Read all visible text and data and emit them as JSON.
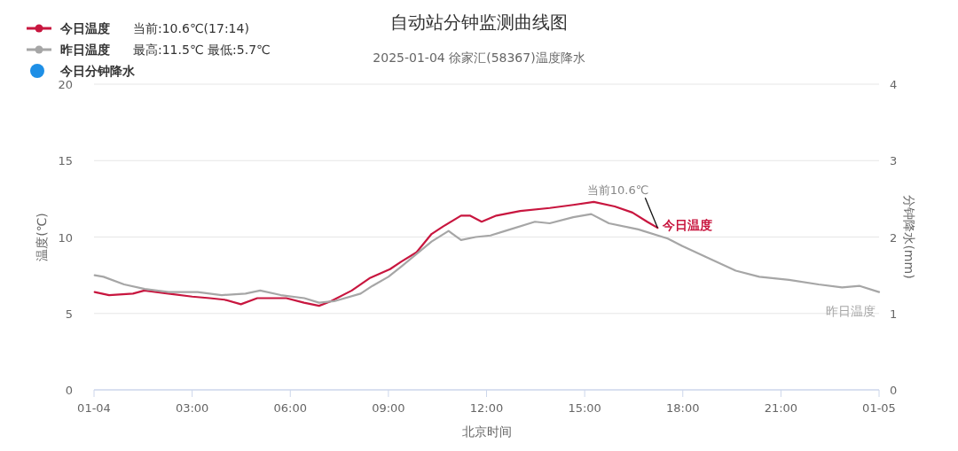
{
  "chart_data": {
    "type": "line",
    "title": "自动站分钟监测曲线图",
    "subtitle": "2025-01-04 徐家汇(58367)温度降水",
    "xlabel": "北京时间",
    "ylabel": "温度(℃)",
    "y2label": "分钟降水(mm)",
    "xlim": [
      0,
      24
    ],
    "xticks": [
      {
        "value": 0,
        "label": "01-04"
      },
      {
        "value": 3,
        "label": "03:00"
      },
      {
        "value": 6,
        "label": "06:00"
      },
      {
        "value": 9,
        "label": "09:00"
      },
      {
        "value": 12,
        "label": "12:00"
      },
      {
        "value": 15,
        "label": "15:00"
      },
      {
        "value": 18,
        "label": "18:00"
      },
      {
        "value": 21,
        "label": "21:00"
      },
      {
        "value": 24,
        "label": "01-05"
      }
    ],
    "ylim": [
      0,
      20
    ],
    "yticks": [
      0,
      5,
      10,
      15,
      20
    ],
    "y2lim": [
      0,
      4
    ],
    "y2ticks": [
      0,
      1,
      2,
      3,
      4
    ],
    "grid": "y",
    "legend": "top left",
    "series": [
      {
        "name": "今日温度",
        "color": "#c8163f",
        "x": [
          0.02,
          0.46,
          1.19,
          1.54,
          2.27,
          3.0,
          3.54,
          3.99,
          4.49,
          4.99,
          5.88,
          6.42,
          6.88,
          7.24,
          7.88,
          8.42,
          9.05,
          9.4,
          9.86,
          10.32,
          10.68,
          11.22,
          11.49,
          11.85,
          12.3,
          13.03,
          13.93,
          14.65,
          15.28,
          15.92,
          16.46,
          16.91,
          17.23
        ],
        "values": [
          6.4,
          6.2,
          6.3,
          6.5,
          6.3,
          6.1,
          6.0,
          5.9,
          5.6,
          6.0,
          6.0,
          5.7,
          5.5,
          5.8,
          6.5,
          7.3,
          7.9,
          8.4,
          9.0,
          10.2,
          10.7,
          11.4,
          11.4,
          11.0,
          11.4,
          11.7,
          11.9,
          12.1,
          12.3,
          12.0,
          11.6,
          11.0,
          10.6
        ]
      },
      {
        "name": "昨日温度",
        "color": "#a6a6a6",
        "x": [
          0.02,
          0.29,
          0.92,
          1.55,
          2.28,
          3.17,
          3.9,
          4.63,
          5.08,
          5.71,
          6.43,
          6.88,
          7.34,
          8.15,
          8.51,
          9.0,
          9.41,
          10.32,
          10.84,
          11.22,
          11.67,
          12.12,
          12.57,
          13.48,
          13.93,
          14.65,
          15.2,
          15.74,
          16.64,
          17.54,
          17.99,
          18.81,
          19.62,
          20.34,
          21.25,
          22.15,
          22.87,
          23.41,
          24.0
        ],
        "values": [
          7.5,
          7.4,
          6.9,
          6.6,
          6.4,
          6.4,
          6.2,
          6.3,
          6.5,
          6.2,
          6.0,
          5.7,
          5.8,
          6.3,
          6.8,
          7.4,
          8.1,
          9.7,
          10.4,
          9.8,
          10.0,
          10.1,
          10.4,
          11.0,
          10.9,
          11.3,
          11.5,
          10.9,
          10.5,
          9.9,
          9.4,
          8.6,
          7.8,
          7.4,
          7.2,
          6.9,
          6.7,
          6.8,
          6.4
        ]
      },
      {
        "name": "今日分钟降水",
        "type": "bar",
        "color": "#1e8fe6"
      }
    ],
    "annotations": [
      "当前:10.6℃(17:14)",
      "最高:11.5℃ 最低:5.7℃",
      {
        "text": "当前10.6℃",
        "x": 17.23,
        "y": 10.6
      }
    ]
  }
}
